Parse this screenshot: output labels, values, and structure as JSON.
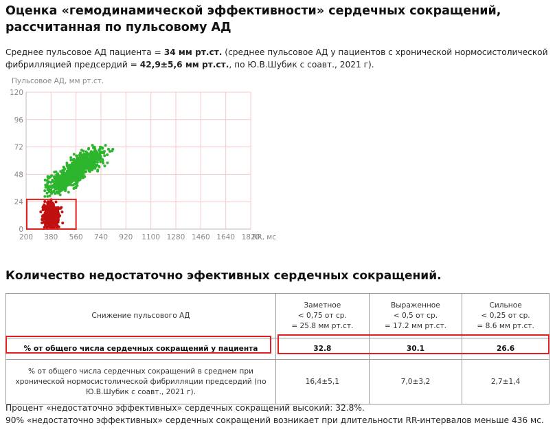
{
  "title": "Оценка «гемодинамической эффективности» сердечных сокращений, рассчитанная по пульсовому АД",
  "intro": {
    "part1": "Среднее пульсовое АД пациента = ",
    "patient_value": "34 мм рт.ст.",
    "part2": " (среднее пульсовое АД у пациентов с хронической нормосистолической фибрилляцией предсердий = ",
    "reference_value": "42,9±5,6 мм рт.ст.",
    "part3": ", по Ю.В.Шубик с соавт., 2021 г)."
  },
  "chart_data": {
    "type": "scatter",
    "ylabel": "Пульсовое АД, мм рт.ст.",
    "xlabel": "RR, мс",
    "x_ticks": [
      200,
      380,
      560,
      740,
      920,
      1100,
      1280,
      1460,
      1640,
      1820
    ],
    "y_ticks": [
      0,
      24,
      48,
      72,
      96,
      120
    ],
    "xlim": [
      200,
      1820
    ],
    "ylim": [
      0,
      120
    ],
    "grid": true,
    "series": [
      {
        "color": "#2db52d",
        "cluster": {
          "x_range": [
            330,
            940
          ],
          "y_range": [
            26,
            74
          ],
          "center_x": 560,
          "center_y": 52
        }
      },
      {
        "color": "#c01010",
        "cluster": {
          "x_range": [
            250,
            500
          ],
          "y_range": [
            0,
            26
          ],
          "center_x": 380,
          "center_y": 12
        }
      }
    ],
    "highlight_box": {
      "x_range": [
        200,
        560
      ],
      "y_range": [
        0,
        26
      ],
      "color": "#e02020"
    }
  },
  "section_title": "Количество недостаточно эфективных сердечных сокращений.",
  "table": {
    "header": {
      "label": "Снижение пульсового АД",
      "cols": [
        [
          "Заметное",
          "< 0,75 от ср.",
          "= 25.8 мм рт.ст."
        ],
        [
          "Выраженное",
          "< 0,5 от ср.",
          "= 17.2 мм рт.ст."
        ],
        [
          "Сильное",
          "< 0,25 от ср.",
          "= 8.6 мм рт.ст."
        ]
      ]
    },
    "patient_row": {
      "label": "% от общего числа сердечных сокращений у пациента",
      "values": [
        "32.8",
        "30.1",
        "26.6"
      ]
    },
    "reference_row": {
      "label": "% от общего числа сердечных сокращений в среднем при хронической нормосистолической фибрилляции предсердий (по Ю.В.Шубик с соавт., 2021 г).",
      "values": [
        "16,4±5,1",
        "7,0±3,2",
        "2,7±1,4"
      ]
    }
  },
  "notes": [
    "Процент «недостаточно эффективных» сердечных сокращений высокий: 32.8%.",
    "90% «недостаточно эффективных» сердечных сокращений возникает при длительности RR-интервалов меньше 436 мс."
  ]
}
